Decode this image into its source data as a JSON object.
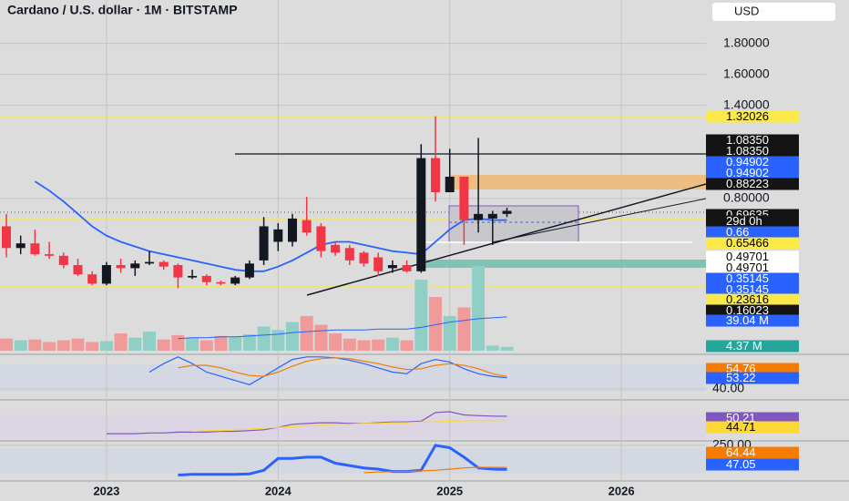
{
  "chart_data": {
    "type": "candlestick",
    "title": "Cardano / U.S. dollar · 1M · BITSTAMP",
    "currency": "USD",
    "categories": [
      null,
      null,
      null,
      null,
      null,
      null,
      null,
      "2023",
      null,
      null,
      null,
      null,
      null,
      null,
      null,
      null,
      null,
      null,
      null,
      "2024",
      null,
      null,
      null,
      null,
      null,
      null,
      null,
      null,
      null,
      null,
      null,
      "2025",
      null,
      null,
      null,
      null,
      null,
      null,
      null,
      null,
      null,
      null,
      null,
      "2026"
    ],
    "open": [
      0.62,
      0.48,
      0.51,
      0.44,
      0.43,
      0.37,
      0.31,
      0.25,
      0.37,
      0.35,
      0.38,
      0.39,
      0.37,
      0.29,
      0.3,
      0.26,
      0.25,
      0.29,
      0.4,
      0.52,
      0.52,
      0.66,
      0.62,
      0.5,
      0.48,
      0.45,
      0.42,
      0.35,
      0.37,
      0.33,
      1.06,
      0.84,
      0.94,
      0.66,
      0.67,
      0.7,
      null,
      null,
      null,
      null,
      null,
      null,
      null,
      null
    ],
    "high": [
      0.7,
      0.56,
      0.6,
      0.52,
      0.45,
      0.41,
      0.33,
      0.39,
      0.41,
      0.4,
      0.46,
      0.4,
      0.38,
      0.34,
      0.31,
      0.27,
      0.3,
      0.4,
      0.68,
      0.64,
      0.7,
      0.81,
      0.64,
      0.52,
      0.5,
      0.46,
      0.45,
      0.4,
      0.4,
      1.15,
      1.33,
      1.12,
      0.94,
      1.19,
      0.72,
      0.74,
      null,
      null,
      null,
      null,
      null,
      null,
      null,
      null
    ],
    "low": [
      0.42,
      0.44,
      0.43,
      0.41,
      0.35,
      0.3,
      0.24,
      0.24,
      0.32,
      0.3,
      0.37,
      0.34,
      0.22,
      0.28,
      0.24,
      0.24,
      0.24,
      0.28,
      0.37,
      0.46,
      0.49,
      0.56,
      0.42,
      0.43,
      0.37,
      0.36,
      0.3,
      0.32,
      0.32,
      0.32,
      0.78,
      0.84,
      0.5,
      0.58,
      0.5,
      0.68,
      null,
      null,
      null,
      null,
      null,
      null,
      null,
      null
    ],
    "close": [
      0.48,
      0.51,
      0.44,
      0.43,
      0.37,
      0.31,
      0.25,
      0.37,
      0.35,
      0.38,
      0.39,
      0.36,
      0.29,
      0.3,
      0.26,
      0.25,
      0.29,
      0.38,
      0.62,
      0.6,
      0.67,
      0.58,
      0.46,
      0.45,
      0.4,
      0.38,
      0.33,
      0.37,
      0.33,
      1.06,
      0.84,
      0.94,
      0.66,
      0.7,
      0.7,
      0.72,
      null,
      null,
      null,
      null,
      null,
      null,
      null,
      null
    ],
    "up_color": "#131722",
    "down_color": "#f23645",
    "ylim": [
      -0.2,
      2.08
    ],
    "yticks": [
      {
        "value": 1.8,
        "label": "1.80000"
      },
      {
        "value": 1.6,
        "label": "1.60000"
      },
      {
        "value": 1.4,
        "label": "1.40000"
      },
      {
        "value": 0.8,
        "label": "0.80000"
      }
    ],
    "grid": true,
    "ma": {
      "color": "#2962ff",
      "values": [
        null,
        null,
        0.91,
        0.85,
        0.78,
        0.7,
        0.62,
        0.56,
        0.52,
        0.49,
        0.46,
        0.44,
        0.42,
        0.4,
        0.38,
        0.36,
        0.34,
        0.33,
        0.33,
        0.36,
        0.4,
        0.45,
        0.5,
        0.52,
        0.52,
        0.5,
        0.48,
        0.46,
        0.45,
        0.44,
        0.52,
        0.6,
        0.66,
        0.67,
        0.66,
        0.66,
        null,
        null,
        null,
        null,
        null,
        null,
        null,
        null
      ]
    },
    "volume": {
      "values": [
        14,
        12,
        13,
        10,
        12,
        14,
        10,
        11,
        20,
        15,
        22,
        13,
        18,
        15,
        12,
        17,
        16,
        19,
        28,
        24,
        33,
        40,
        30,
        20,
        14,
        12,
        13,
        15,
        12,
        82,
        62,
        40,
        50,
        98,
        6,
        4.37,
        null,
        null,
        null,
        null,
        null,
        null,
        null,
        null
      ],
      "ylim": [
        0,
        100
      ],
      "up_color": "#8fcfc6",
      "down_color": "#f09a9a",
      "ma": {
        "color": "#2962ff",
        "values": [
          null,
          null,
          null,
          null,
          null,
          null,
          null,
          null,
          null,
          null,
          null,
          null,
          14,
          15,
          15,
          16,
          16,
          17,
          18,
          19,
          21,
          22,
          23,
          24,
          24,
          24,
          25,
          25,
          25,
          27,
          30,
          33,
          35,
          37,
          38,
          39.04,
          null,
          null,
          null,
          null,
          null,
          null,
          null,
          null
        ]
      }
    },
    "price_labels": [
      {
        "value": 1.32026,
        "label": "1.32026",
        "bg": "#fbe94a",
        "fg": "#000000"
      },
      {
        "value": 1.0835,
        "label": "1.08350",
        "bg": "#131313",
        "fg": "#ffffff"
      },
      {
        "value": 1.0835,
        "label": "1.08350",
        "bg": "#131313",
        "fg": "#ffffff"
      },
      {
        "value": 0.94902,
        "label": "0.94902",
        "bg": "#2962ff",
        "fg": "#ffffff"
      },
      {
        "value": 0.94902,
        "label": "0.94902",
        "bg": "#2962ff",
        "fg": "#ffffff"
      },
      {
        "value": 0.88223,
        "label": "0.88223",
        "bg": "#131313",
        "fg": "#ffffff"
      },
      {
        "value": 0.69635,
        "label": "0.69635",
        "bg": "#131313",
        "fg": "#ffffff"
      },
      {
        "label": "29d 0h",
        "bg": "#131313",
        "fg": "#ffffff"
      },
      {
        "value": 0.66,
        "label": "0.66",
        "bg": "#2962ff",
        "fg": "#ffffff"
      },
      {
        "value": 0.65466,
        "label": "0.65466",
        "bg": "#fbe94a",
        "fg": "#000000"
      },
      {
        "value": 0.49701,
        "label": "0.49701",
        "bg": "#ffffff",
        "fg": "#000000"
      },
      {
        "value": 0.49701,
        "label": "0.49701",
        "bg": "#ffffff",
        "fg": "#000000"
      },
      {
        "value": 0.35145,
        "label": "0.35145",
        "bg": "#2962ff",
        "fg": "#ffffff"
      },
      {
        "value": 0.35145,
        "label": "0.35145",
        "bg": "#2962ff",
        "fg": "#ffffff"
      },
      {
        "value": 0.23616,
        "label": "0.23616",
        "bg": "#fbe94a",
        "fg": "#000000"
      },
      {
        "value": 0.16023,
        "label": "0.16023",
        "bg": "#131313",
        "fg": "#ffffff"
      },
      {
        "value": 39.04,
        "label": "39.04 M",
        "bg": "#2962ff",
        "fg": "#ffffff"
      },
      {
        "value": 4.37,
        "label": "4.37 M",
        "bg": "#26a69a",
        "fg": "#ffffff"
      }
    ],
    "indicators": [
      {
        "ylim": [
          28,
          80
        ],
        "yticks": [
          {
            "value": 40,
            "label": "40.00"
          }
        ],
        "series": [
          {
            "color": "#2962ff",
            "values": [
              null,
              null,
              null,
              null,
              null,
              null,
              null,
              null,
              null,
              null,
              60,
              70,
              78,
              70,
              60,
              55,
              50,
              45,
              55,
              65,
              75,
              78,
              78,
              77,
              74,
              70,
              65,
              60,
              58,
              70,
              75,
              72,
              64,
              58,
              55,
              53.22,
              null,
              null,
              null,
              null,
              null,
              null,
              null,
              null
            ]
          },
          {
            "color": "#f57c00",
            "values": [
              null,
              null,
              null,
              null,
              null,
              null,
              null,
              null,
              null,
              null,
              null,
              null,
              65,
              68,
              68,
              65,
              60,
              56,
              55,
              60,
              67,
              73,
              76,
              77,
              76,
              73,
              70,
              66,
              63,
              64,
              68,
              70,
              68,
              64,
              58,
              54.76,
              null,
              null,
              null,
              null,
              null,
              null,
              null,
              null
            ]
          }
        ],
        "labels": [
          {
            "value": 54.76,
            "bg": "#f57c00",
            "fg": "#ffffff"
          },
          {
            "value": 53.22,
            "bg": "#2962ff",
            "fg": "#ffffff"
          }
        ]
      },
      {
        "ylim": [
          20,
          70
        ],
        "yticks": [],
        "series": [
          {
            "color": "#7e57c2",
            "values": [
              null,
              null,
              null,
              null,
              null,
              null,
              null,
              28,
              28,
              28,
              29,
              29,
              30,
              30,
              30,
              31,
              31,
              32,
              33,
              36,
              40,
              41,
              42,
              42,
              41,
              41,
              42,
              43,
              43,
              44,
              55,
              56,
              52,
              51,
              50.5,
              50.21,
              null,
              null,
              null,
              null,
              null,
              null,
              null,
              null
            ]
          },
          {
            "color": "#fdd835",
            "values": [
              null,
              null,
              null,
              null,
              null,
              null,
              null,
              null,
              null,
              null,
              null,
              null,
              null,
              31,
              32,
              32,
              33,
              34,
              35,
              36,
              37,
              38,
              39,
              40,
              40,
              41,
              41,
              42,
              42,
              43,
              43,
              44,
              44.5,
              44.6,
              44.7,
              44.71,
              null,
              null,
              null,
              null,
              null,
              null,
              null,
              null
            ]
          }
        ],
        "labels": [
          {
            "value": 50.21,
            "bg": "#7e57c2",
            "fg": "#ffffff"
          },
          {
            "value": 44.71,
            "bg": "#fdd835",
            "fg": "#000000"
          }
        ]
      },
      {
        "ylim": [
          -50,
          280
        ],
        "yticks": [
          {
            "value": 250,
            "label": "250.00"
          }
        ],
        "series": [
          {
            "color": "#2962ff",
            "values": [
              null,
              null,
              null,
              null,
              null,
              null,
              null,
              null,
              null,
              null,
              null,
              null,
              0,
              5,
              5,
              5,
              5,
              10,
              40,
              140,
              140,
              150,
              150,
              100,
              80,
              60,
              50,
              30,
              30,
              40,
              250,
              230,
              150,
              60,
              50,
              47.05,
              null,
              null,
              null,
              null,
              null,
              null,
              null,
              null
            ]
          },
          {
            "color": "#f57c00",
            "values": [
              null,
              null,
              null,
              null,
              null,
              null,
              null,
              null,
              null,
              null,
              null,
              null,
              null,
              null,
              null,
              null,
              null,
              null,
              null,
              null,
              null,
              null,
              null,
              null,
              null,
              20,
              25,
              28,
              30,
              35,
              40,
              50,
              60,
              65,
              64,
              64.44,
              null,
              null,
              null,
              null,
              null,
              null,
              null,
              null
            ]
          }
        ],
        "labels": [
          {
            "value": 64.44,
            "bg": "#f57c00",
            "fg": "#ffffff"
          },
          {
            "value": 47.05,
            "bg": "#2962ff",
            "fg": "#ffffff"
          }
        ]
      }
    ]
  }
}
